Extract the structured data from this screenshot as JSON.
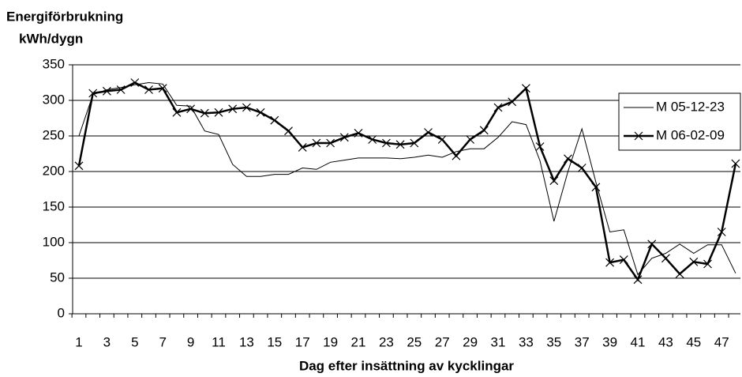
{
  "chart_data": {
    "type": "line",
    "title": "Energiförbrukning",
    "ylabel": "kWh/dygn",
    "xlabel": "Dag efter insättning av kycklingar",
    "categories": [
      1,
      null,
      3,
      null,
      5,
      null,
      7,
      null,
      9,
      null,
      11,
      null,
      13,
      null,
      15,
      null,
      17,
      null,
      19,
      null,
      21,
      null,
      23,
      null,
      25,
      null,
      27,
      null,
      29,
      null,
      31,
      null,
      33,
      null,
      35,
      null,
      37,
      null,
      39,
      null,
      41,
      null,
      43,
      null,
      45,
      null,
      47,
      null
    ],
    "series": [
      {
        "name": "M 05-12-23",
        "color": "#000000",
        "line_width": 1,
        "values": [
          250,
          308,
          315,
          318,
          322,
          325,
          323,
          293,
          292,
          257,
          252,
          210,
          193,
          193,
          196,
          196,
          205,
          203,
          213,
          216,
          219,
          219,
          219,
          218,
          220,
          223,
          220,
          228,
          232,
          232,
          248,
          270,
          266,
          215,
          130,
          200,
          260,
          185,
          115,
          118,
          55,
          78,
          85,
          98,
          85,
          97,
          97,
          57
        ]
      },
      {
        "name": "M 06-02-09",
        "color": "#000000",
        "line_width": 2.5,
        "marker": "x",
        "values": [
          208,
          310,
          313,
          315,
          325,
          315,
          317,
          283,
          288,
          282,
          283,
          288,
          290,
          283,
          272,
          257,
          234,
          240,
          240,
          248,
          254,
          245,
          240,
          238,
          240,
          255,
          245,
          222,
          245,
          258,
          290,
          298,
          317,
          235,
          187,
          218,
          205,
          178,
          72,
          76,
          48,
          98,
          78,
          56,
          73,
          70,
          115,
          211
        ]
      }
    ],
    "ylim": [
      0,
      350
    ],
    "yticks": [
      0,
      50,
      100,
      150,
      200,
      250,
      300,
      350
    ],
    "grid": true,
    "legend": "right"
  }
}
